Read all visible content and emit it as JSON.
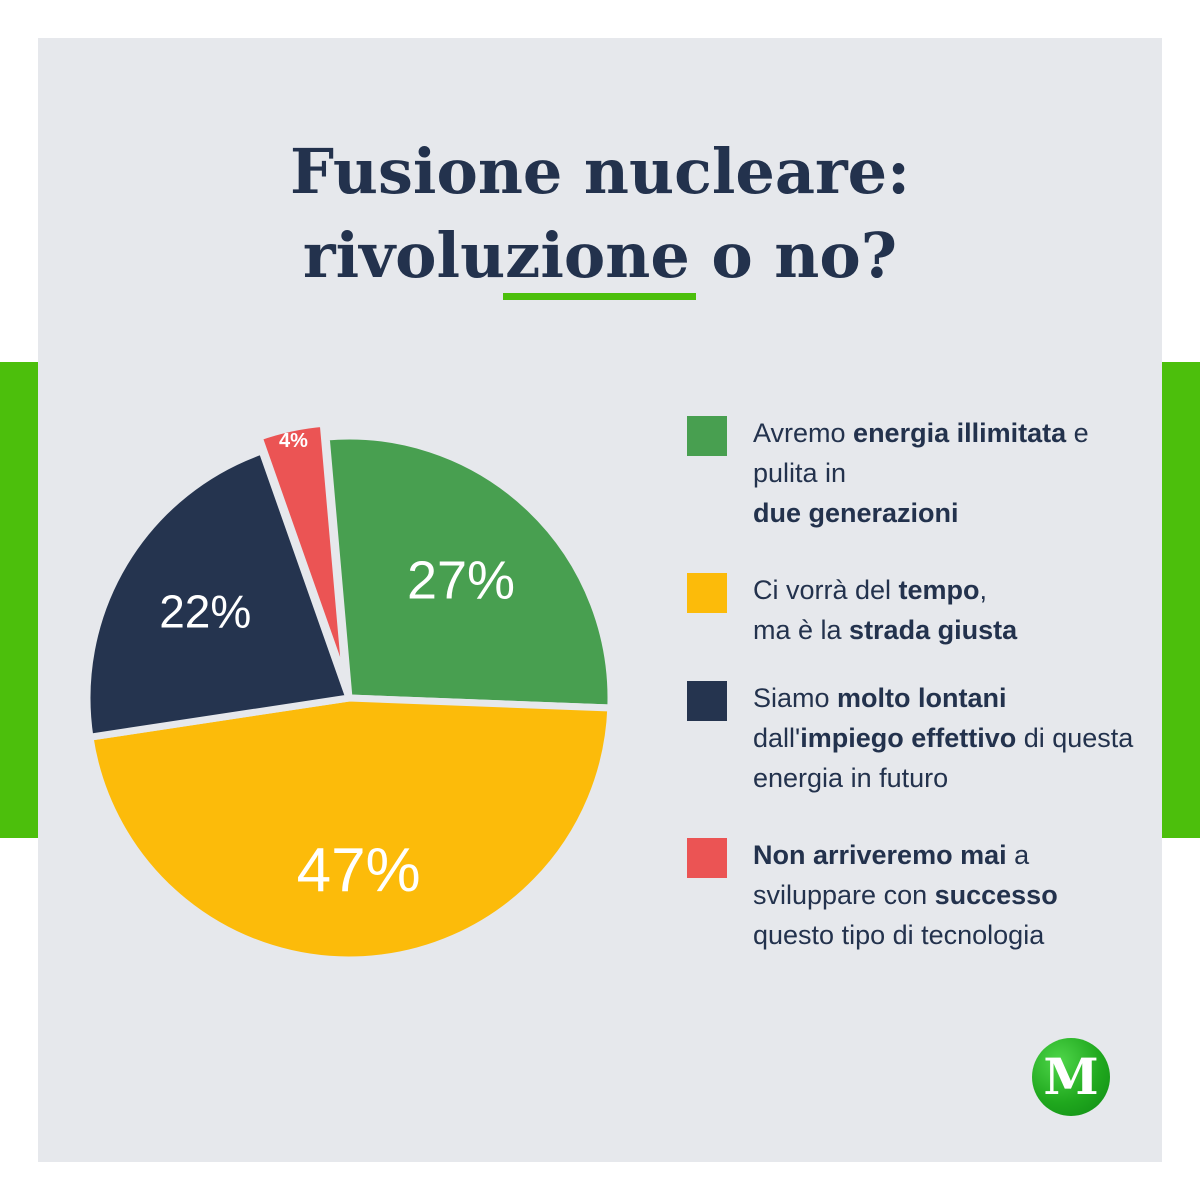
{
  "title": {
    "line1": "Fusione nucleare:",
    "line2": "rivoluzione o no?"
  },
  "colors": {
    "accent_green": "#4cbf0c",
    "card_background": "#e6e8ec",
    "text_dark": "#23324d"
  },
  "chart_data": {
    "type": "pie",
    "title": "Fusione nucleare: rivoluzione o no?",
    "unit": "%",
    "slices": [
      {
        "label": "Avremo energia illimitata e pulita in due generazioni",
        "value": 27,
        "value_label": "27%",
        "color": "#489f50"
      },
      {
        "label": "Ci vorrà del tempo, ma è la strada giusta",
        "value": 47,
        "value_label": "47%",
        "color": "#fcbb0a"
      },
      {
        "label": "Siamo molto lontani dall'impiego effettivo di questa energia in futuro",
        "value": 22,
        "value_label": "22%",
        "color": "#25344f"
      },
      {
        "label": "Non arriveremo mai a sviluppare con successo questo tipo di tecnologia",
        "value": 4,
        "value_label": "4%",
        "color": "#eb5454"
      }
    ]
  },
  "legend": {
    "items": [
      {
        "slice": "green",
        "parts": [
          {
            "text": "Avremo ",
            "bold": false
          },
          {
            "text": "energia illimitata",
            "bold": true
          },
          {
            "text": " e pulita in ",
            "bold": false
          },
          {
            "text": "due generazioni",
            "bold": true
          }
        ]
      },
      {
        "slice": "yellow",
        "parts": [
          {
            "text": "Ci vorrà del ",
            "bold": false
          },
          {
            "text": "tempo",
            "bold": true
          },
          {
            "text": ",",
            "bold": false
          },
          {
            "text": "ma è la ",
            "bold": false
          },
          {
            "text": "strada giusta",
            "bold": true
          }
        ]
      },
      {
        "slice": "navy",
        "parts": [
          {
            "text": "Siamo ",
            "bold": false
          },
          {
            "text": "molto lontani",
            "bold": true
          },
          {
            "text": " dall'",
            "bold": false
          },
          {
            "text": "impiego effettivo",
            "bold": true
          },
          {
            "text": " di questa energia in futuro",
            "bold": false
          }
        ]
      },
      {
        "slice": "red",
        "parts": [
          {
            "text": "Non arriveremo mai",
            "bold": true
          },
          {
            "text": " a sviluppare con ",
            "bold": false
          },
          {
            "text": "successo",
            "bold": true
          },
          {
            "text": " questo tipo di tecnologia",
            "bold": false
          }
        ]
      }
    ]
  },
  "logo": {
    "letter": "M",
    "icon": "m-logo-icon"
  }
}
